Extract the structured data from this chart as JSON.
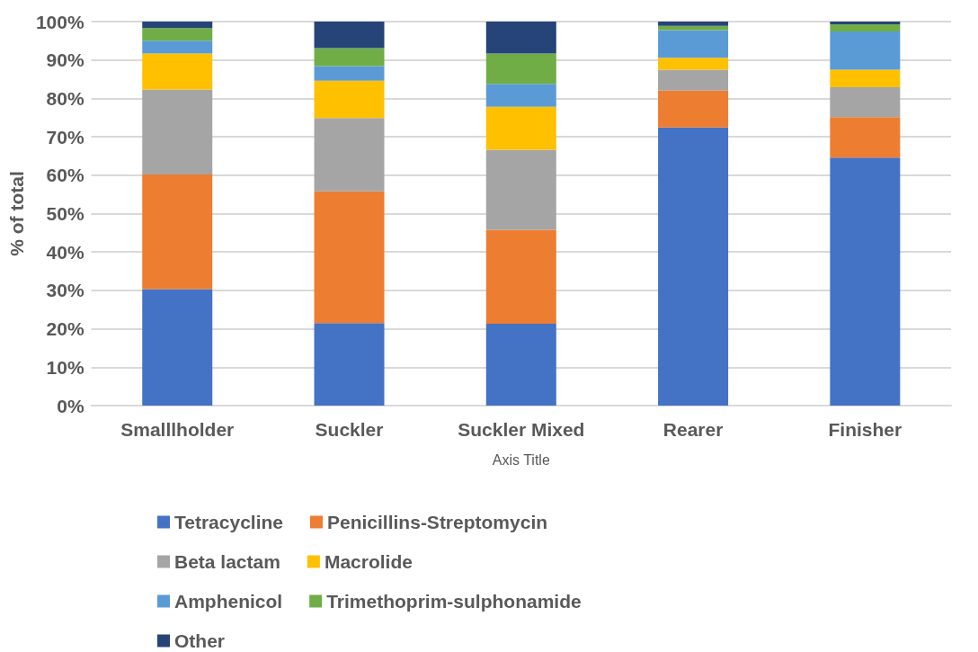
{
  "chart_data": {
    "type": "bar",
    "stacked": true,
    "xlabel": "Axis Title",
    "ylabel": "% of total",
    "categories": [
      "Smalllholder",
      "Suckler",
      "Suckler Mixed",
      "Rearer",
      "Finisher"
    ],
    "series": [
      {
        "name": "Tetracycline",
        "color": "#4472c4",
        "values": [
          30.3,
          21.5,
          21.3,
          72.4,
          64.6
        ]
      },
      {
        "name": "Penicillins-Streptomycin",
        "color": "#ed7d31",
        "values": [
          29.9,
          34.3,
          24.5,
          9.6,
          10.5
        ]
      },
      {
        "name": "Beta lactam",
        "color": "#a5a5a5",
        "values": [
          22.1,
          19.1,
          20.8,
          5.5,
          7.8
        ]
      },
      {
        "name": "Macrolide",
        "color": "#ffc000",
        "values": [
          9.4,
          9.7,
          11.2,
          3.1,
          4.6
        ]
      },
      {
        "name": "Amphenicol",
        "color": "#5b9bd5",
        "values": [
          3.3,
          3.8,
          6.0,
          7.2,
          9.9
        ]
      },
      {
        "name": "Trimethoprim-sulphonamide",
        "color": "#70ad47",
        "values": [
          3.3,
          4.7,
          7.9,
          1.1,
          1.9
        ]
      },
      {
        "name": "Other",
        "color": "#264478",
        "values": [
          1.7,
          6.9,
          8.3,
          1.1,
          0.7
        ]
      }
    ],
    "ylim": [
      0,
      100
    ],
    "yticks": [
      {
        "value": 0,
        "label": "0%"
      },
      {
        "value": 10,
        "label": "10%"
      },
      {
        "value": 20,
        "label": "20%"
      },
      {
        "value": 30,
        "label": "30%"
      },
      {
        "value": 40,
        "label": "40%"
      },
      {
        "value": 50,
        "label": "50%"
      },
      {
        "value": 60,
        "label": "60%"
      },
      {
        "value": 70,
        "label": "70%"
      },
      {
        "value": 80,
        "label": "80%"
      },
      {
        "value": 90,
        "label": "90%"
      },
      {
        "value": 100,
        "label": "100%"
      }
    ],
    "grid": "y",
    "legend": "bottom"
  }
}
